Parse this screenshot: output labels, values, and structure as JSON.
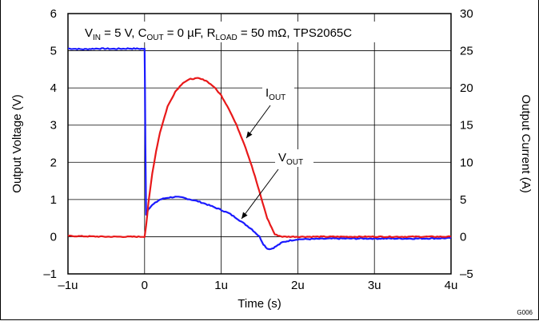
{
  "chart_data": {
    "type": "line",
    "title": "",
    "condition_text": {
      "vin_main": "V",
      "vin_sub": "IN",
      "vin_rest": " = 5 V, ",
      "cout_main": "C",
      "cout_sub": "OUT",
      "cout_rest": " = 0 µF, ",
      "rload_main": "R",
      "rload_sub": "LOAD",
      "rload_rest": " = 50 mΩ,  TPS2065C"
    },
    "xlabel": "Time (s)",
    "ylabel_left": "Output Voltage (V)",
    "ylabel_right": "Output Current (A)",
    "xlim": [
      -1,
      4
    ],
    "ylim_left": [
      -1,
      6
    ],
    "ylim_right": [
      -5,
      30
    ],
    "x_ticks": [
      -1,
      0,
      1,
      2,
      3,
      4
    ],
    "x_tick_labels": [
      "–1u",
      "0",
      "1u",
      "2u",
      "3u",
      "4u"
    ],
    "y_left_ticks": [
      -1,
      0,
      1,
      2,
      3,
      4,
      5,
      6
    ],
    "y_left_tick_labels": [
      "–1",
      "0",
      "1",
      "2",
      "3",
      "4",
      "5",
      "6"
    ],
    "y_right_ticks": [
      -5,
      0,
      5,
      10,
      15,
      20,
      25,
      30
    ],
    "y_right_tick_labels": [
      "–5",
      "0",
      "5",
      "10",
      "15",
      "20",
      "25",
      "30"
    ],
    "grid": true,
    "figure_id": "G006",
    "colors": {
      "vout": "#1a1aff",
      "iout": "#e8191a"
    },
    "series": [
      {
        "key": "vout",
        "label_main": "V",
        "label_sub": "OUT",
        "axis": "left",
        "x": [
          -1.0,
          -0.8,
          -0.6,
          -0.4,
          -0.2,
          0.0,
          0.005,
          0.01,
          0.02,
          0.05,
          0.1,
          0.2,
          0.3,
          0.4,
          0.5,
          0.6,
          0.7,
          0.8,
          0.9,
          1.0,
          1.1,
          1.2,
          1.3,
          1.4,
          1.5,
          1.55,
          1.6,
          1.65,
          1.7,
          1.8,
          1.9,
          2.0,
          2.5,
          3.0,
          3.5,
          4.0
        ],
        "y": [
          5.06,
          5.04,
          5.06,
          5.05,
          5.06,
          5.05,
          4.0,
          2.5,
          0.6,
          0.75,
          0.85,
          1.0,
          1.05,
          1.07,
          1.05,
          1.0,
          0.95,
          0.88,
          0.8,
          0.72,
          0.63,
          0.5,
          0.35,
          0.2,
          0.0,
          -0.2,
          -0.32,
          -0.33,
          -0.28,
          -0.15,
          -0.1,
          -0.07,
          -0.05,
          -0.05,
          -0.05,
          -0.04
        ]
      },
      {
        "key": "iout",
        "label_main": "I",
        "label_sub": "OUT",
        "axis": "right",
        "x": [
          -1.0,
          -0.5,
          0.0,
          0.02,
          0.05,
          0.1,
          0.15,
          0.2,
          0.3,
          0.4,
          0.5,
          0.6,
          0.7,
          0.8,
          0.9,
          1.0,
          1.1,
          1.2,
          1.3,
          1.4,
          1.5,
          1.6,
          1.7,
          1.8,
          1.9,
          2.0,
          2.5,
          3.0,
          3.5,
          4.0
        ],
        "y": [
          0.1,
          0.0,
          0.0,
          1.5,
          4.5,
          8.5,
          11.5,
          14.0,
          17.5,
          19.5,
          20.7,
          21.2,
          21.3,
          21.0,
          20.2,
          19.0,
          17.2,
          15.0,
          12.5,
          9.5,
          6.0,
          2.5,
          0.3,
          0.0,
          0.0,
          0.0,
          0.0,
          0.0,
          0.0,
          0.0
        ]
      }
    ]
  }
}
